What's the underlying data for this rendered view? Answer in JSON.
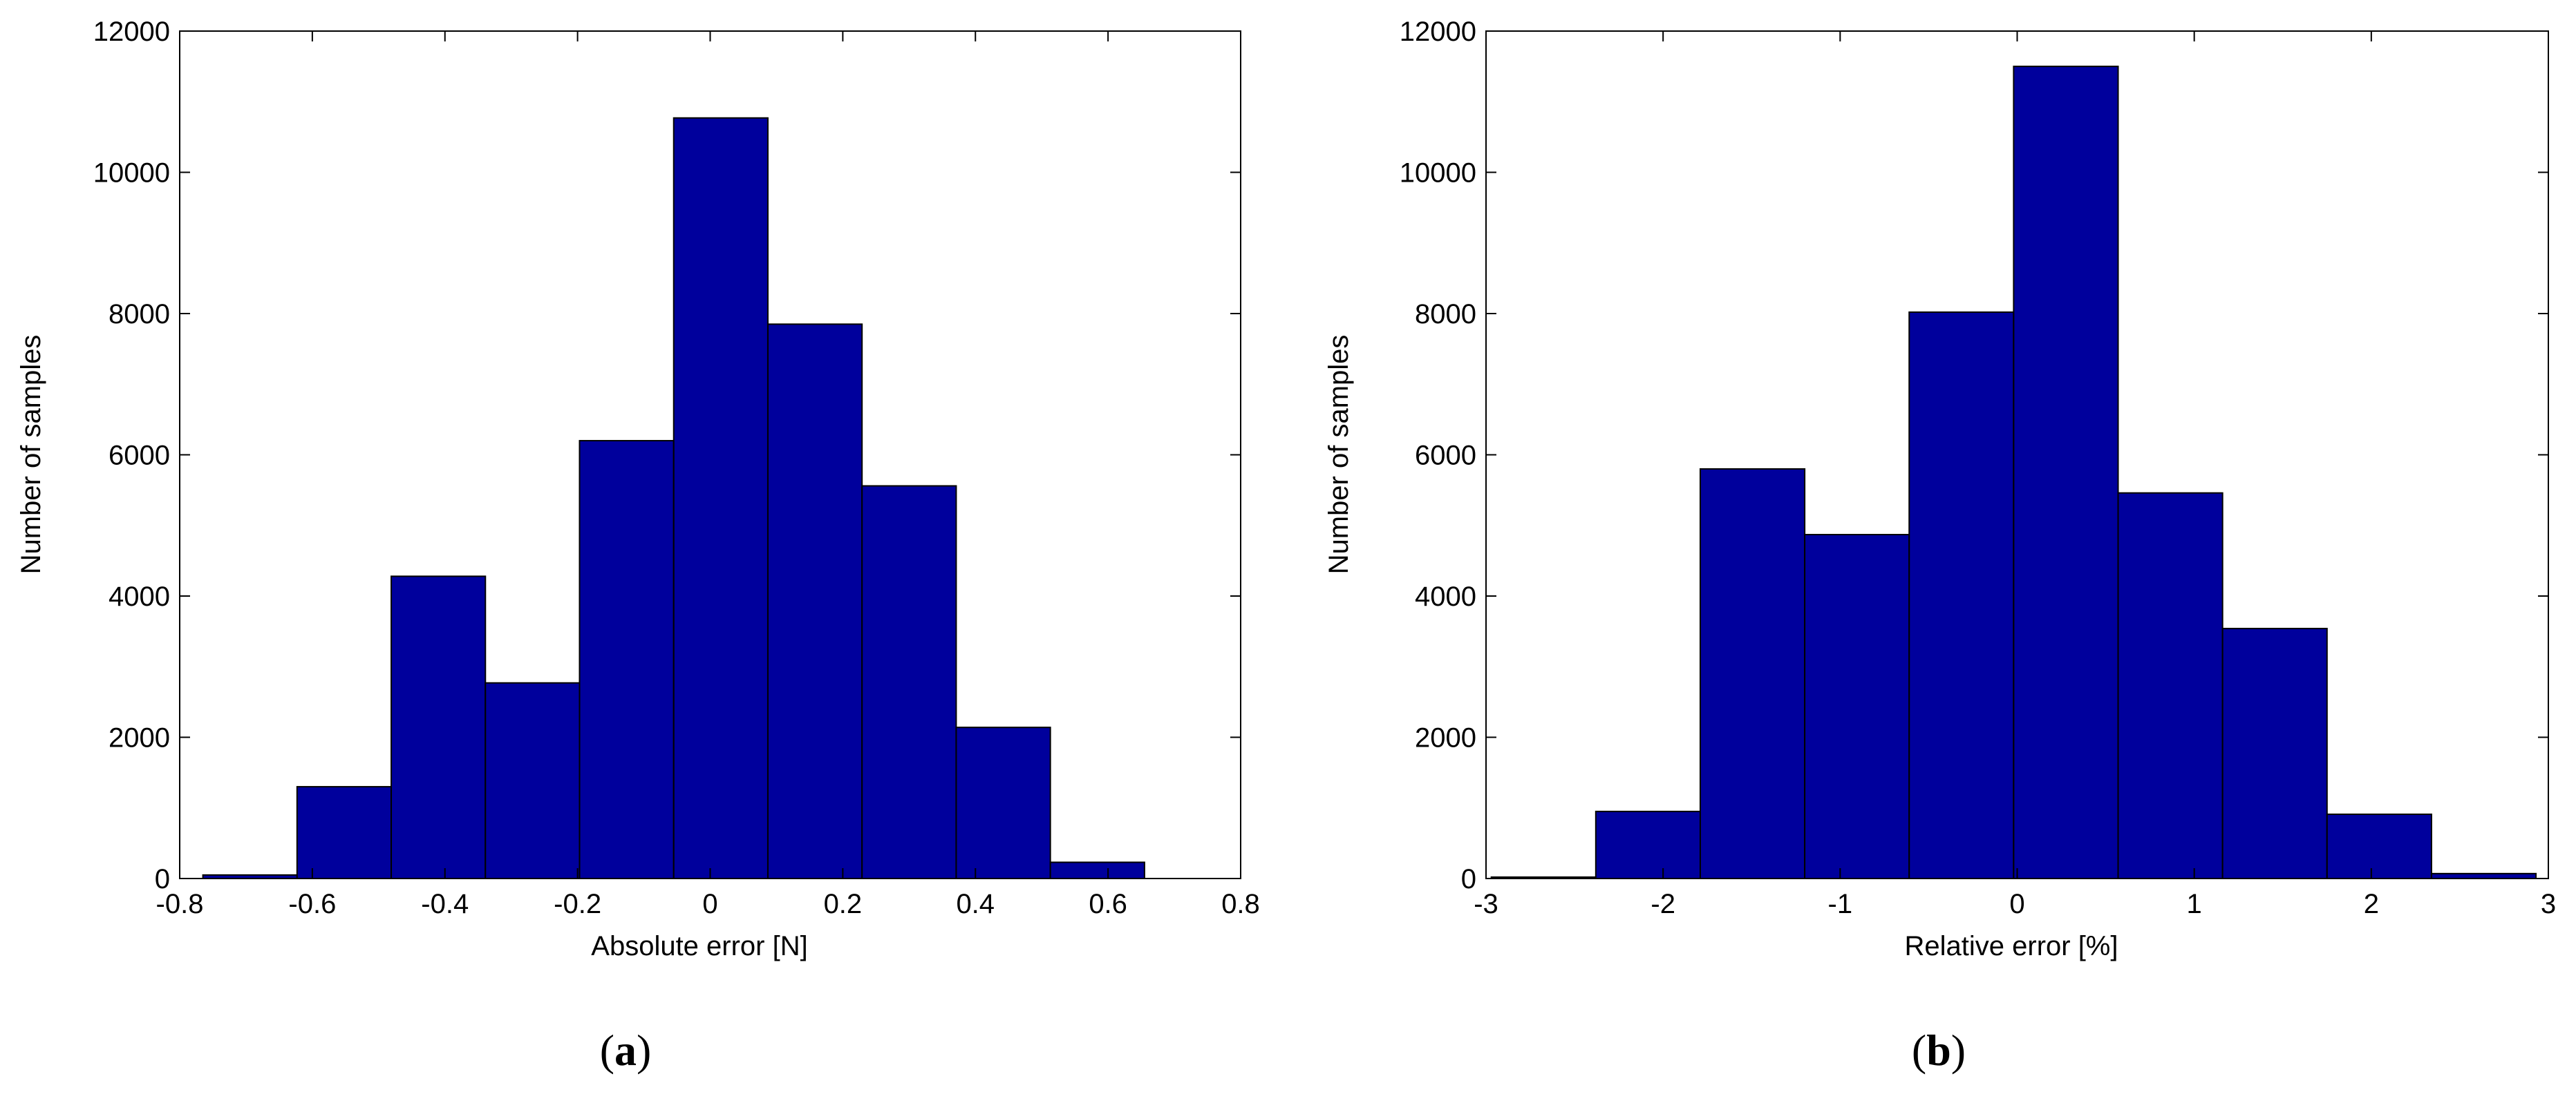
{
  "chart_data": [
    {
      "type": "bar",
      "panel_label": "a",
      "xlabel": "Absolute error [N]",
      "ylabel": "Number of samples",
      "xlim": [
        -0.8,
        0.8
      ],
      "ylim": [
        0,
        12000
      ],
      "xticks": [
        "-0.8",
        "-0.6",
        "-0.4",
        "-0.2",
        "0",
        "0.2",
        "0.4",
        "0.6",
        "0.8"
      ],
      "yticks": [
        "0",
        "2000",
        "4000",
        "6000",
        "8000",
        "10000",
        "12000"
      ],
      "bin_edges": [
        -0.765,
        -0.623,
        -0.481,
        -0.339,
        -0.197,
        -0.055,
        0.087,
        0.229,
        0.371,
        0.513,
        0.655
      ],
      "values": [
        50,
        1300,
        4280,
        2770,
        6200,
        10770,
        7850,
        5560,
        2140,
        230
      ],
      "bar_color": "#00009c",
      "grid": false
    },
    {
      "type": "bar",
      "panel_label": "b",
      "xlabel": "Relative error [%]",
      "ylabel": "Number of samples",
      "xlim": [
        -3,
        3
      ],
      "ylim": [
        0,
        12000
      ],
      "xticks": [
        "-3",
        "-2",
        "-1",
        "0",
        "1",
        "2",
        "3"
      ],
      "yticks": [
        "0",
        "2000",
        "4000",
        "6000",
        "8000",
        "10000",
        "12000"
      ],
      "bin_edges": [
        -2.97,
        -2.38,
        -1.79,
        -1.2,
        -0.61,
        -0.02,
        0.57,
        1.16,
        1.75,
        2.34,
        2.93
      ],
      "values": [
        20,
        950,
        5800,
        4870,
        8020,
        11500,
        5460,
        3540,
        910,
        70
      ],
      "bar_color": "#00009c",
      "grid": false
    }
  ]
}
